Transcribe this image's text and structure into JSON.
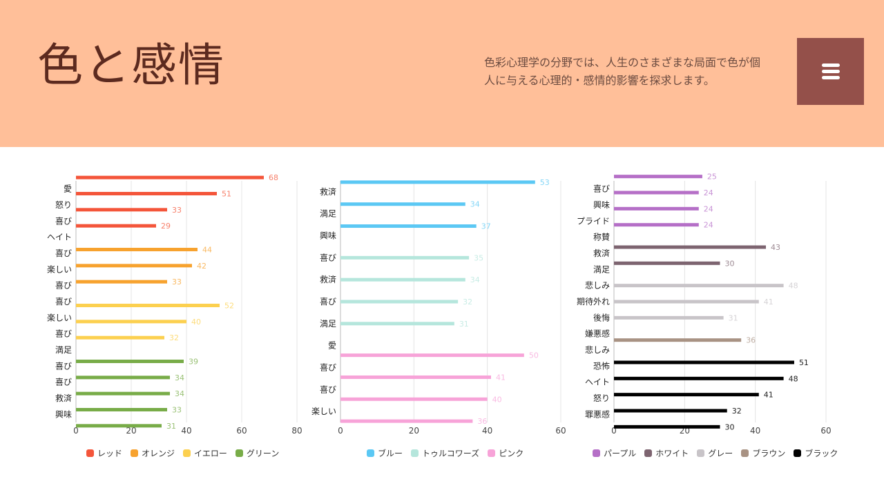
{
  "header": {
    "title": "色と感情",
    "description": "色彩心理学の分野では、人生のさまざまな局面で色が個人に与える心理的・感情的影響を探求します。",
    "menu_icon": "hamburger-menu-icon"
  },
  "chart_data": [
    {
      "type": "bar",
      "orientation": "horizontal",
      "xlim": [
        0,
        80
      ],
      "xticks": [
        0,
        20,
        40,
        60,
        80
      ],
      "grid": true,
      "legend_position": "bottom",
      "series": [
        {
          "name": "レッド",
          "color": "#f4553a",
          "items": [
            {
              "label": "愛",
              "value": 68
            },
            {
              "label": "怒り",
              "value": 51
            },
            {
              "label": "喜び",
              "value": 33
            },
            {
              "label": "ヘイト",
              "value": 29
            }
          ]
        },
        {
          "name": "オレンジ",
          "color": "#f7a22e",
          "items": [
            {
              "label": "喜び",
              "value": 44
            },
            {
              "label": "楽しい",
              "value": 42
            },
            {
              "label": "喜び",
              "value": 33
            }
          ]
        },
        {
          "name": "イエロー",
          "color": "#fcd04f",
          "items": [
            {
              "label": "喜び",
              "value": 52
            },
            {
              "label": "楽しい",
              "value": 40
            },
            {
              "label": "喜び",
              "value": 32
            }
          ]
        },
        {
          "name": "グリーン",
          "color": "#78ac48",
          "items": [
            {
              "label": "満足",
              "value": 39
            },
            {
              "label": "喜び",
              "value": 34
            },
            {
              "label": "喜び",
              "value": 34
            },
            {
              "label": "救済",
              "value": 33
            },
            {
              "label": "興味",
              "value": 31
            }
          ]
        }
      ]
    },
    {
      "type": "bar",
      "orientation": "horizontal",
      "xlim": [
        0,
        60
      ],
      "xticks": [
        0,
        20,
        40,
        60
      ],
      "grid": true,
      "legend_position": "bottom",
      "series": [
        {
          "name": "ブルー",
          "color": "#5bc8f4",
          "items": [
            {
              "label": "救済",
              "value": 53
            },
            {
              "label": "満足",
              "value": 34
            },
            {
              "label": "興味",
              "value": 37
            }
          ]
        },
        {
          "name": "トゥルコワーズ",
          "color": "#b5e6dc",
          "items": [
            {
              "label": "喜び",
              "value": 35
            },
            {
              "label": "救済",
              "value": 34
            },
            {
              "label": "喜び",
              "value": 32
            },
            {
              "label": "満足",
              "value": 31
            }
          ]
        },
        {
          "name": "ピンク",
          "color": "#f7a3d8",
          "items": [
            {
              "label": "愛",
              "value": 50
            },
            {
              "label": "喜び",
              "value": 41
            },
            {
              "label": "喜び",
              "value": 40
            },
            {
              "label": "楽しい",
              "value": 36
            }
          ]
        }
      ]
    },
    {
      "type": "bar",
      "orientation": "horizontal",
      "xlim": [
        0,
        60
      ],
      "xticks": [
        0,
        20,
        40,
        60
      ],
      "grid": true,
      "legend_position": "bottom",
      "series": [
        {
          "name": "パープル",
          "color": "#b56fc7",
          "items": [
            {
              "label": "喜び",
              "value": 25
            },
            {
              "label": "興味",
              "value": 24
            },
            {
              "label": "プライド",
              "value": 24
            },
            {
              "label": "称賛",
              "value": 24
            }
          ]
        },
        {
          "name": "ホワイト",
          "color": "#7d6470",
          "items": [
            {
              "label": "救済",
              "value": 43
            },
            {
              "label": "満足",
              "value": 30
            }
          ]
        },
        {
          "name": "グレー",
          "color": "#c8c4c8",
          "items": [
            {
              "label": "悲しみ",
              "value": 48
            },
            {
              "label": "期待外れ",
              "value": 41
            },
            {
              "label": "後悔",
              "value": 31
            }
          ]
        },
        {
          "name": "ブラウン",
          "color": "#a89283",
          "items": [
            {
              "label": "嫌悪感",
              "value": 36
            }
          ]
        },
        {
          "name": "ブラック",
          "color": "#000000",
          "items": [
            {
              "label": "悲しみ",
              "value": 51
            },
            {
              "label": "恐怖",
              "value": 48
            },
            {
              "label": "ヘイト",
              "value": 41
            },
            {
              "label": "怒り",
              "value": 32
            },
            {
              "label": "罪悪感",
              "value": 30
            }
          ]
        }
      ]
    }
  ]
}
